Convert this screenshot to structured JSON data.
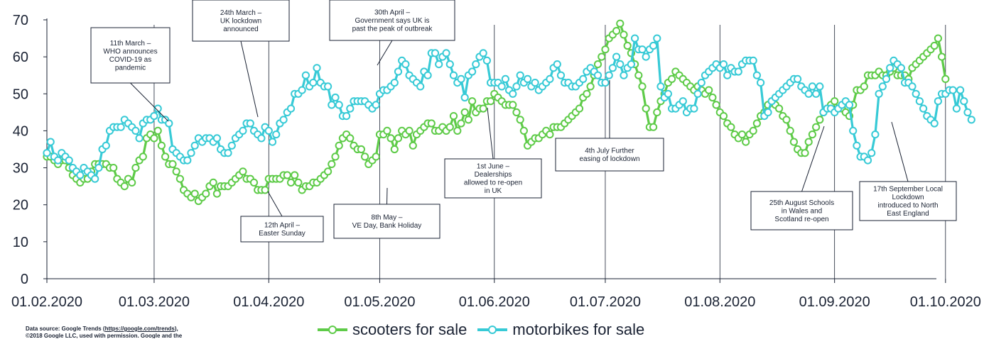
{
  "chart_data": {
    "type": "line",
    "x_start": "01.02.2020",
    "ylim": [
      0,
      70
    ],
    "yticks": [
      0,
      10,
      20,
      30,
      40,
      50,
      60,
      70
    ],
    "xticks": [
      "01.02.2020",
      "01.03.2020",
      "01.04.2020",
      "01.05.2020",
      "01.06.2020",
      "01.07.2020",
      "01.08.2020",
      "01.09.2020",
      "01.10.2020"
    ],
    "series": [
      {
        "name": "scooters for sale",
        "color": "#5ecb48",
        "values": [
          33,
          33,
          32,
          31,
          32,
          32,
          30,
          28,
          27,
          26,
          27,
          27,
          29,
          31,
          31,
          31,
          31,
          30,
          30,
          27,
          26,
          25,
          27,
          26,
          30,
          32,
          33,
          38,
          39,
          38,
          40,
          36,
          33,
          31,
          31,
          29,
          27,
          24,
          23,
          22,
          23,
          21,
          22,
          23,
          25,
          26,
          23,
          25,
          25,
          25,
          26,
          27,
          28,
          29,
          27,
          27,
          26,
          24,
          24,
          24,
          27,
          27,
          27,
          27,
          28,
          28,
          26,
          28,
          26,
          24,
          25,
          25,
          26,
          26,
          27,
          28,
          29,
          31,
          33,
          36,
          38,
          39,
          38,
          36,
          35,
          35,
          33,
          31,
          32,
          33,
          39,
          39,
          40,
          38,
          35,
          38,
          40,
          39,
          40,
          36,
          39,
          40,
          41,
          42,
          42,
          40,
          40,
          41,
          40,
          41,
          44,
          40,
          42,
          45,
          43,
          48,
          45,
          46,
          46,
          48,
          48,
          50,
          49,
          48,
          47,
          47,
          47,
          45,
          43,
          40,
          36,
          37,
          38,
          38,
          39,
          40,
          39,
          41,
          41,
          41,
          42,
          43,
          44,
          45,
          46,
          49,
          50,
          52,
          55,
          58,
          60,
          62,
          65,
          66,
          67,
          69,
          66,
          63,
          61,
          58,
          55,
          52,
          46,
          41,
          41,
          45,
          48,
          50,
          53,
          54,
          56,
          55,
          54,
          53,
          52,
          51,
          52,
          51,
          50,
          51,
          49,
          47,
          45,
          44,
          42,
          41,
          39,
          38,
          39,
          37,
          39,
          40,
          42,
          44,
          45,
          47,
          48,
          47,
          46,
          44,
          43,
          40,
          37,
          35,
          34,
          34,
          37,
          39,
          41,
          43,
          45,
          46,
          47,
          48,
          46,
          46,
          45,
          44,
          47,
          51,
          51,
          52,
          55,
          55,
          55,
          56,
          55,
          55,
          56,
          57,
          55,
          55,
          55,
          54,
          57,
          58,
          59,
          60,
          61,
          62,
          63,
          65,
          60,
          54
        ]
      },
      {
        "name": "motorbikes for sale",
        "color": "#37cad6",
        "values": [
          34,
          37,
          33,
          32,
          34,
          33,
          32,
          30,
          29,
          28,
          30,
          29,
          28,
          27,
          30,
          35,
          36,
          40,
          41,
          41,
          41,
          43,
          42,
          41,
          40,
          38,
          42,
          43,
          43,
          44,
          46,
          43,
          43,
          42,
          35,
          34,
          33,
          32,
          32,
          34,
          36,
          38,
          37,
          38,
          38,
          37,
          38,
          35,
          34,
          34,
          36,
          38,
          39,
          40,
          42,
          42,
          40,
          39,
          38,
          41,
          40,
          37,
          39,
          42,
          43,
          45,
          46,
          50,
          50,
          51,
          55,
          52,
          53,
          57,
          53,
          52,
          52,
          47,
          49,
          47,
          44,
          44,
          46,
          48,
          48,
          48,
          48,
          47,
          46,
          47,
          50,
          51,
          51,
          52,
          53,
          56,
          59,
          58,
          55,
          54,
          53,
          52,
          56,
          55,
          61,
          61,
          58,
          60,
          61,
          58,
          55,
          53,
          54,
          49,
          55,
          56,
          58,
          60,
          61,
          59,
          53,
          53,
          53,
          52,
          54,
          51,
          50,
          52,
          55,
          53,
          54,
          52,
          53,
          51,
          52,
          53,
          54,
          57,
          58,
          55,
          53,
          53,
          52,
          52,
          53,
          54,
          56,
          57,
          56,
          55,
          53,
          53,
          55,
          57,
          60,
          58,
          55,
          57,
          58,
          65,
          62,
          62,
          60,
          62,
          63,
          65,
          52,
          49,
          50,
          46,
          46,
          47,
          48,
          45,
          46,
          46,
          50,
          53,
          55,
          56,
          57,
          58,
          57,
          58,
          55,
          57,
          56,
          56,
          58,
          59,
          59,
          59,
          55,
          53,
          44,
          45,
          48,
          49,
          50,
          51,
          52,
          53,
          54,
          54,
          52,
          51,
          50,
          52,
          50,
          52,
          45,
          46,
          46,
          45,
          46,
          47,
          48,
          47,
          40,
          36,
          33,
          33,
          32,
          34,
          39,
          50,
          52,
          54,
          57,
          59,
          58,
          57,
          53,
          53,
          52,
          50,
          48,
          46,
          44,
          43,
          42,
          48,
          50,
          50,
          51,
          51,
          46,
          51,
          48,
          45,
          43
        ]
      }
    ],
    "annotations": [
      {
        "text": "11th March – WHO announces COVID-19 as pandemic",
        "lines": [
          "11th March –",
          "WHO announces",
          "COVID-19 as",
          "pandemic"
        ],
        "sup": [
          "th"
        ],
        "date_index": 39
      },
      {
        "text": "24th March – UK lockdown announced",
        "lines": [
          "24th March –",
          "UK lockdown",
          "announced"
        ],
        "date_index": 52
      },
      {
        "text": "12th April – Easter Sunday",
        "lines": [
          "12th April –",
          "Easter Sunday"
        ],
        "date_index": 71
      },
      {
        "text": "30th April – Government says UK is past the peak of outbreak",
        "lines": [
          "30th April –",
          "Government says UK is",
          "past the peak of outbreak"
        ],
        "date_index": 89
      },
      {
        "text": "8th May – VE Day, Bank Holiday",
        "lines": [
          "8th May –",
          "VE Day, Bank Holiday"
        ],
        "date_index": 97
      },
      {
        "text": "1st June – Dealerships allowed to re-open in UK",
        "lines": [
          "1st June –",
          "Dealerships",
          "allowed to re-open",
          "in UK"
        ],
        "date_index": 121
      },
      {
        "text": "4th July Further easing of lockdown",
        "lines": [
          "4th July  Further",
          "easing of lockdown"
        ],
        "date_index": 154
      },
      {
        "text": "25th August Schools in Wales and Scotland re-open",
        "lines": [
          "25th August Schools",
          "in Wales and",
          "Scotland re-open"
        ],
        "date_index": 206
      },
      {
        "text": "17th September Local Lockdown introduced to North East England",
        "lines": [
          "17th September Local",
          "Lockdown",
          "introduced to North",
          "East England"
        ],
        "date_index": 229
      }
    ]
  },
  "source": {
    "prefix": "Data source: Google Trends (",
    "link": "https://google.com/trends",
    "suffix": "),",
    "line2": "©2018 Google LLC, used with permission. Google and the"
  },
  "legend": [
    {
      "label": "scooters for sale",
      "color": "#5ecb48"
    },
    {
      "label": "motorbikes for sale",
      "color": "#37cad6"
    }
  ]
}
